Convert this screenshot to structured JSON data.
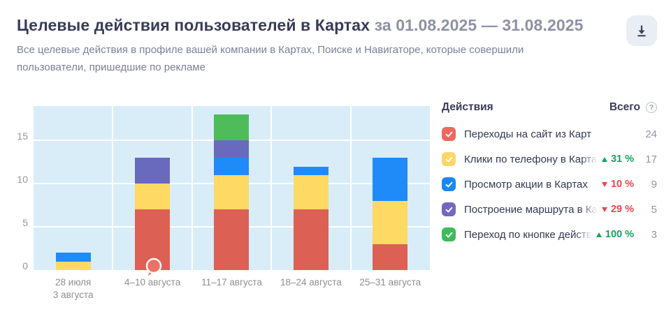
{
  "header": {
    "title": "Целевые действия пользователей в Картах",
    "period": "за 01.08.2025 — 31.08.2025",
    "subtitle_line1": "Все целевые действия в профиле вашей компании в Картах, Поиске и Навигаторе, которые совершили",
    "subtitle_line2": "пользователи, пришедшие по рекламе"
  },
  "toolbar": {
    "download_icon": "download-icon",
    "icon_color": "#3a3e5b",
    "button_bg": "#e9edf4"
  },
  "legend": {
    "col_actions": "Действия",
    "col_total": "Всего",
    "help_icon": "?",
    "trend_up_color": "#14a45e",
    "trend_down_color": "#f0444e",
    "rows": [
      {
        "color": "#ed685e",
        "label": "Переходы на сайт из Карт",
        "trend": null,
        "total": "24"
      },
      {
        "color": "#fcd765",
        "label": "Клики по телефону в Картах",
        "trend": {
          "dir": "up",
          "text": "31 %"
        },
        "total": "17"
      },
      {
        "color": "#1b87f5",
        "label": "Просмотр акции в Картах",
        "trend": {
          "dir": "down",
          "text": "10 %"
        },
        "total": "9"
      },
      {
        "color": "#7169bf",
        "label": "Построение маршрута в Картах",
        "trend": {
          "dir": "down",
          "text": "29 %"
        },
        "total": "5"
      },
      {
        "color": "#3fbb5c",
        "label": "Переход по кнопке действия из",
        "trend": {
          "dir": "up",
          "text": "100 %"
        },
        "total": "3"
      }
    ]
  },
  "chart_data": {
    "type": "bar",
    "stacked": true,
    "categories": [
      "28 июля\n3 августа",
      "4–10 августа",
      "11–17 августа",
      "18–24 августа",
      "25–31 августа"
    ],
    "series": [
      {
        "name": "Переходы на сайт из Карт",
        "color": "#dd6055",
        "values": [
          0,
          7,
          7,
          7,
          3
        ]
      },
      {
        "name": "Клики по телефону в Картах",
        "color": "#fed963",
        "values": [
          1,
          3,
          4,
          4,
          5
        ]
      },
      {
        "name": "Просмотр акции в Картах",
        "color": "#1e8bf9",
        "values": [
          1,
          0,
          2,
          1,
          5
        ]
      },
      {
        "name": "Построение маршрута в Картах",
        "color": "#6969bd",
        "values": [
          0,
          3,
          2,
          0,
          0
        ]
      },
      {
        "name": "Переход по кнопке действия из",
        "color": "#4fbc5c",
        "values": [
          0,
          0,
          3,
          0,
          0
        ]
      }
    ],
    "yticks": [
      0,
      5,
      10,
      15
    ],
    "ymax": 19,
    "plot_bg": "#d9edf8",
    "grid_color": "#ffffff",
    "axis_text_color": "#8f8f8f",
    "annotation": {
      "category_index": 1,
      "y": 0,
      "shape": "balloon",
      "color": "#ef7166"
    }
  }
}
